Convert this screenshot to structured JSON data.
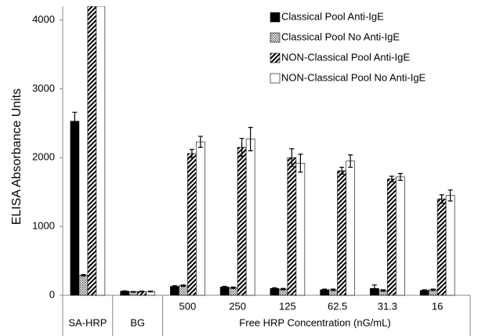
{
  "chart_data": {
    "type": "bar",
    "y_label": "ELISA Absorbance Units",
    "x_label": "Free HRP Concentration (nG/mL)",
    "categories": [
      "SA-HRP",
      "BG",
      "500",
      "250",
      "125",
      "62.5",
      "31.3",
      "16"
    ],
    "ylim": [
      0,
      4200
    ],
    "yticks": [
      0,
      1000,
      2000,
      3000,
      4000
    ],
    "grid": false,
    "legend": "top-right",
    "series": [
      {
        "name": "Classical Pool Anti-IgE",
        "color": "#000000",
        "pattern": "solid",
        "values": [
          2530,
          60,
          130,
          120,
          100,
          80,
          100,
          70
        ],
        "errors": [
          130,
          5,
          10,
          10,
          10,
          10,
          50,
          10
        ]
      },
      {
        "name": "Classical Pool No Anti-IgE",
        "color": "#888888",
        "pattern": "dots",
        "values": [
          290,
          50,
          140,
          110,
          90,
          80,
          70,
          80
        ],
        "errors": [
          10,
          5,
          10,
          10,
          10,
          10,
          10,
          10
        ]
      },
      {
        "name": "NON-Classical Pool Anti-IgE",
        "color": "#000000",
        "pattern": "hatch",
        "values": [
          4200,
          55,
          2060,
          2150,
          2000,
          1810,
          1690,
          1400
        ],
        "errors": [
          0,
          5,
          60,
          130,
          130,
          50,
          40,
          60
        ]
      },
      {
        "name": "NON-Classical Pool No Anti-IgE",
        "color": "#ffffff",
        "pattern": "none",
        "values": [
          4200,
          55,
          2230,
          2270,
          1920,
          1950,
          1720,
          1450
        ],
        "errors": [
          0,
          5,
          80,
          170,
          130,
          90,
          50,
          80
        ]
      }
    ]
  }
}
